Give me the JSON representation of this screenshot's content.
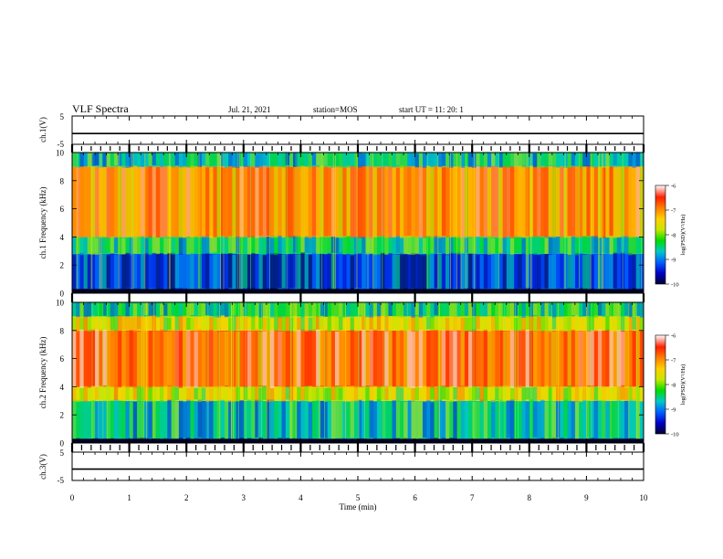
{
  "header": {
    "title": "VLF Spectra",
    "date": "Jul. 21, 2021",
    "station": "station=MOS",
    "start": "start UT =  11: 20: 1"
  },
  "colors": {
    "ramp": [
      "#000030",
      "#0000c8",
      "#0060ff",
      "#00c8c8",
      "#00dc00",
      "#c8e600",
      "#ffd000",
      "#ff8000",
      "#ff2000",
      "#ffffff"
    ],
    "line": "#000000"
  },
  "chart_data": [
    {
      "type": "line",
      "name": "ch.1 waveform",
      "ylabel": "ch.1(V)",
      "ylim": [
        -5,
        5
      ],
      "yticks": [
        "5",
        "-5"
      ],
      "x": [
        0,
        10
      ],
      "values": [
        -1.2,
        -1.2
      ],
      "xlim": [
        0,
        10
      ]
    },
    {
      "type": "heatmap",
      "name": "ch.1 spectrogram",
      "ylabel": "ch.1 Frequency (kHz)",
      "ylim": [
        0,
        10
      ],
      "yticks": [
        "0",
        "2",
        "4",
        "6",
        "8",
        "10"
      ],
      "xlim": [
        0,
        10
      ],
      "colorbar": {
        "label": "log(PSD)(V²/Hz)",
        "range": [
          -10,
          -6
        ],
        "ticks": [
          "-6",
          "-7",
          "-8",
          "-9",
          "-10"
        ]
      },
      "bands": [
        {
          "f": [
            0,
            0.3
          ],
          "level": -9.5
        },
        {
          "f": [
            0.3,
            2.8
          ],
          "level": -9.2
        },
        {
          "f": [
            2.8,
            4.0
          ],
          "level": -8.5
        },
        {
          "f": [
            4.0,
            9.0
          ],
          "level": -7.0
        },
        {
          "f": [
            9.0,
            10
          ],
          "level": -8.6
        }
      ]
    },
    {
      "type": "heatmap",
      "name": "ch.2 spectrogram",
      "ylabel": "ch.2 Frequency (kHz)",
      "ylim": [
        0,
        10
      ],
      "yticks": [
        "0",
        "2",
        "4",
        "6",
        "8",
        "10"
      ],
      "xlim": [
        0,
        10
      ],
      "colorbar": {
        "label": "log(PSD)(V²/Hz)",
        "range": [
          -10,
          -6
        ],
        "ticks": [
          "-6",
          "-7",
          "-8",
          "-9",
          "-10"
        ]
      },
      "bands": [
        {
          "f": [
            0,
            0.3
          ],
          "level": -9.6
        },
        {
          "f": [
            0.3,
            3.0
          ],
          "level": -8.6
        },
        {
          "f": [
            3.0,
            4.0
          ],
          "level": -7.6
        },
        {
          "f": [
            4.0,
            8.0
          ],
          "level": -6.7
        },
        {
          "f": [
            8.0,
            9.0
          ],
          "level": -7.6
        },
        {
          "f": [
            9.0,
            10
          ],
          "level": -8.4
        }
      ]
    },
    {
      "type": "line",
      "name": "ch.3 waveform",
      "ylabel": "ch.3(V)",
      "ylim": [
        -5,
        5
      ],
      "yticks": [
        "5",
        "-5"
      ],
      "x": [
        0,
        10
      ],
      "values": [
        -1.0,
        -1.0
      ],
      "xlim": [
        0,
        10
      ],
      "xlabel": "Time (min)",
      "xticks": [
        "0",
        "1",
        "2",
        "3",
        "4",
        "5",
        "6",
        "7",
        "8",
        "9",
        "10"
      ]
    }
  ]
}
